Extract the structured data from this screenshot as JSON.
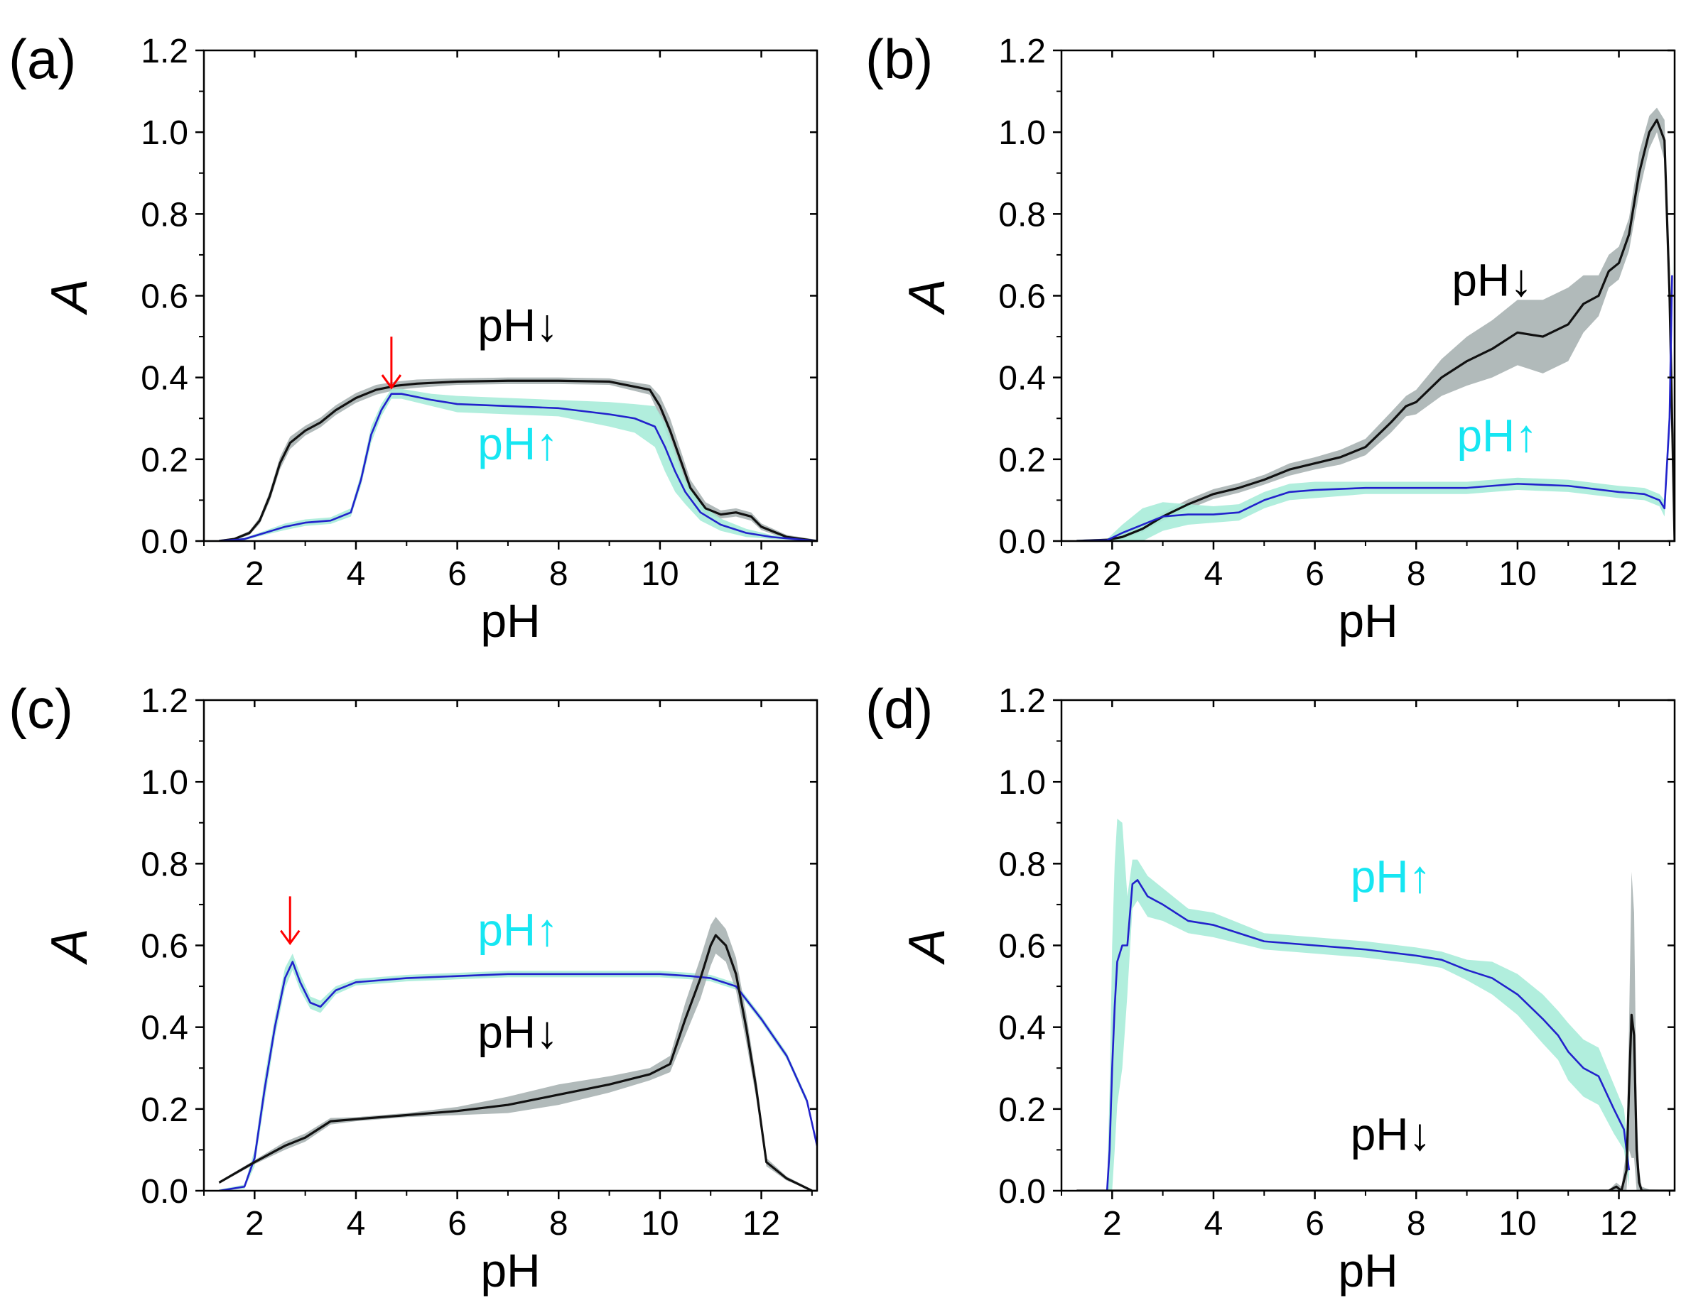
{
  "figure": {
    "description_labels": [
      "(a)",
      "(b)",
      "(c)",
      "(d)"
    ],
    "colors": {
      "ph_down_line": "#111111",
      "ph_down_band": "#a9b3b3",
      "ph_up_line": "#2222cc",
      "ph_up_band": "#a8ecd9",
      "ph_up_label": "#16e6f2",
      "ph_down_label": "#000000",
      "marker_arrow": "#ff0000"
    }
  },
  "chart_data": [
    {
      "id": "a",
      "panel_label": "(a)",
      "type": "line",
      "xlabel": "pH",
      "ylabel": "A",
      "xlim": [
        1,
        13.1
      ],
      "ylim": [
        0,
        1.2
      ],
      "xticks": [
        "2",
        "4",
        "6",
        "8",
        "10",
        "12"
      ],
      "xtick_values": [
        2,
        4,
        6,
        8,
        10,
        12
      ],
      "yticks": [
        "0.0",
        "0.2",
        "0.4",
        "0.6",
        "0.8",
        "1.0",
        "1.2"
      ],
      "ytick_values": [
        0,
        0.2,
        0.4,
        0.6,
        0.8,
        1.0,
        1.2
      ],
      "series": [
        {
          "name": "pH↓",
          "role": "down",
          "x": [
            1.3,
            1.6,
            1.9,
            2.1,
            2.3,
            2.5,
            2.7,
            3.0,
            3.3,
            3.6,
            4.0,
            4.4,
            4.8,
            5.2,
            6.0,
            7.0,
            8.0,
            9.0,
            9.8,
            10.0,
            10.2,
            10.4,
            10.6,
            10.9,
            11.2,
            11.5,
            11.8,
            12.0,
            12.5,
            13.1
          ],
          "y": [
            0.0,
            0.005,
            0.02,
            0.05,
            0.11,
            0.19,
            0.24,
            0.27,
            0.29,
            0.32,
            0.35,
            0.37,
            0.38,
            0.385,
            0.39,
            0.392,
            0.392,
            0.39,
            0.37,
            0.33,
            0.27,
            0.2,
            0.13,
            0.08,
            0.065,
            0.07,
            0.06,
            0.035,
            0.01,
            0.0
          ],
          "band": [
            0.003,
            0.003,
            0.005,
            0.008,
            0.012,
            0.015,
            0.015,
            0.012,
            0.012,
            0.012,
            0.012,
            0.012,
            0.01,
            0.01,
            0.008,
            0.008,
            0.008,
            0.008,
            0.012,
            0.025,
            0.03,
            0.025,
            0.02,
            0.015,
            0.01,
            0.01,
            0.01,
            0.008,
            0.005,
            0.003
          ]
        },
        {
          "name": "pH↑",
          "role": "up",
          "x": [
            1.3,
            1.8,
            2.2,
            2.6,
            3.0,
            3.5,
            3.9,
            4.1,
            4.3,
            4.5,
            4.7,
            4.9,
            5.5,
            6.0,
            7.0,
            8.0,
            9.0,
            9.5,
            9.9,
            10.1,
            10.3,
            10.5,
            10.8,
            11.2,
            11.7,
            12.2,
            13.1
          ],
          "y": [
            0.0,
            0.005,
            0.02,
            0.035,
            0.045,
            0.05,
            0.07,
            0.15,
            0.26,
            0.32,
            0.36,
            0.36,
            0.345,
            0.335,
            0.33,
            0.325,
            0.31,
            0.3,
            0.28,
            0.23,
            0.17,
            0.12,
            0.07,
            0.04,
            0.02,
            0.01,
            0.0
          ],
          "band": [
            0.003,
            0.003,
            0.005,
            0.008,
            0.008,
            0.008,
            0.01,
            0.015,
            0.02,
            0.015,
            0.012,
            0.012,
            0.015,
            0.02,
            0.02,
            0.02,
            0.03,
            0.035,
            0.05,
            0.06,
            0.05,
            0.03,
            0.02,
            0.015,
            0.01,
            0.005,
            0.003
          ]
        }
      ],
      "annotations": [
        {
          "text": "pH↓",
          "role": "down",
          "x": 7.2,
          "y": 0.49
        },
        {
          "text": "pH↑",
          "role": "up",
          "x": 7.2,
          "y": 0.2
        }
      ],
      "markers": [
        {
          "x": 4.7,
          "y_top": 0.5,
          "y_tip": 0.375
        }
      ]
    },
    {
      "id": "b",
      "panel_label": "(b)",
      "type": "line",
      "xlabel": "pH",
      "ylabel": "A",
      "xlim": [
        1,
        13.1
      ],
      "ylim": [
        0,
        1.2
      ],
      "xticks": [
        "2",
        "4",
        "6",
        "8",
        "10",
        "12"
      ],
      "xtick_values": [
        2,
        4,
        6,
        8,
        10,
        12
      ],
      "yticks": [
        "0.0",
        "0.2",
        "0.4",
        "0.6",
        "0.8",
        "1.0",
        "1.2"
      ],
      "ytick_values": [
        0,
        0.2,
        0.4,
        0.6,
        0.8,
        1.0,
        1.2
      ],
      "series": [
        {
          "name": "pH↓",
          "role": "down",
          "x": [
            1.3,
            1.9,
            2.2,
            2.6,
            3.0,
            3.5,
            4.0,
            4.5,
            5.0,
            5.5,
            6.0,
            6.5,
            7.0,
            7.5,
            7.8,
            8.0,
            8.5,
            9.0,
            9.5,
            10.0,
            10.5,
            11.0,
            11.3,
            11.6,
            11.8,
            12.0,
            12.2,
            12.4,
            12.6,
            12.75,
            12.9,
            13.0,
            13.1
          ],
          "y": [
            0.0,
            0.003,
            0.01,
            0.03,
            0.06,
            0.09,
            0.115,
            0.13,
            0.15,
            0.175,
            0.19,
            0.205,
            0.23,
            0.29,
            0.33,
            0.34,
            0.4,
            0.44,
            0.47,
            0.51,
            0.5,
            0.53,
            0.58,
            0.6,
            0.66,
            0.68,
            0.75,
            0.9,
            1.0,
            1.03,
            0.98,
            0.6,
            0.0
          ],
          "band": [
            0.003,
            0.003,
            0.005,
            0.008,
            0.01,
            0.012,
            0.012,
            0.012,
            0.012,
            0.015,
            0.015,
            0.018,
            0.02,
            0.025,
            0.025,
            0.03,
            0.045,
            0.06,
            0.07,
            0.08,
            0.09,
            0.09,
            0.07,
            0.05,
            0.04,
            0.04,
            0.04,
            0.05,
            0.04,
            0.03,
            0.05,
            0.08,
            0.01
          ]
        },
        {
          "name": "pH↑",
          "role": "up",
          "x": [
            1.3,
            1.9,
            2.2,
            2.6,
            3.0,
            3.5,
            4.0,
            4.5,
            5.0,
            5.5,
            6.0,
            7.0,
            8.0,
            9.0,
            10.0,
            11.0,
            12.0,
            12.5,
            12.8,
            12.9,
            13.0,
            13.05
          ],
          "y": [
            0.0,
            0.002,
            0.02,
            0.04,
            0.06,
            0.065,
            0.065,
            0.07,
            0.1,
            0.12,
            0.125,
            0.13,
            0.13,
            0.13,
            0.14,
            0.135,
            0.12,
            0.115,
            0.1,
            0.08,
            0.3,
            0.65
          ],
          "band": [
            0.003,
            0.003,
            0.02,
            0.04,
            0.035,
            0.025,
            0.02,
            0.02,
            0.02,
            0.02,
            0.02,
            0.015,
            0.015,
            0.015,
            0.015,
            0.015,
            0.015,
            0.015,
            0.015,
            0.02,
            0.05,
            0.05
          ]
        }
      ],
      "annotations": [
        {
          "text": "pH↓",
          "role": "down",
          "x": 9.5,
          "y": 0.6
        },
        {
          "text": "pH↑",
          "role": "up",
          "x": 9.6,
          "y": 0.22
        }
      ],
      "markers": []
    },
    {
      "id": "c",
      "panel_label": "(c)",
      "type": "line",
      "xlabel": "pH",
      "ylabel": "A",
      "xlim": [
        1,
        13.1
      ],
      "ylim": [
        0,
        1.2
      ],
      "xticks": [
        "2",
        "4",
        "6",
        "8",
        "10",
        "12"
      ],
      "xtick_values": [
        2,
        4,
        6,
        8,
        10,
        12
      ],
      "yticks": [
        "0.0",
        "0.2",
        "0.4",
        "0.6",
        "0.8",
        "1.0",
        "1.2"
      ],
      "ytick_values": [
        0,
        0.2,
        0.4,
        0.6,
        0.8,
        1.0,
        1.2
      ],
      "series": [
        {
          "name": "pH↑",
          "role": "up",
          "x": [
            1.3,
            1.8,
            2.0,
            2.2,
            2.4,
            2.6,
            2.75,
            2.9,
            3.1,
            3.3,
            3.6,
            4.0,
            5.0,
            6.0,
            7.0,
            8.0,
            9.0,
            10.0,
            10.6,
            11.0,
            11.5,
            12.0,
            12.5,
            12.9,
            13.1
          ],
          "y": [
            0.0,
            0.01,
            0.08,
            0.25,
            0.4,
            0.52,
            0.56,
            0.51,
            0.46,
            0.45,
            0.49,
            0.51,
            0.52,
            0.525,
            0.53,
            0.53,
            0.53,
            0.53,
            0.525,
            0.52,
            0.5,
            0.42,
            0.33,
            0.22,
            0.11
          ],
          "band": [
            0.003,
            0.005,
            0.02,
            0.03,
            0.025,
            0.025,
            0.02,
            0.02,
            0.015,
            0.015,
            0.01,
            0.008,
            0.008,
            0.008,
            0.008,
            0.008,
            0.008,
            0.008,
            0.008,
            0.008,
            0.008,
            0.008,
            0.008,
            0.008,
            0.008
          ]
        },
        {
          "name": "pH↓",
          "role": "down",
          "x": [
            1.3,
            2.0,
            2.6,
            3.0,
            3.5,
            4.0,
            5.0,
            6.0,
            7.0,
            8.0,
            9.0,
            9.8,
            10.2,
            10.5,
            10.8,
            11.0,
            11.1,
            11.3,
            11.5,
            11.7,
            11.9,
            12.1,
            12.5,
            13.0
          ],
          "y": [
            0.02,
            0.07,
            0.11,
            0.13,
            0.17,
            0.175,
            0.185,
            0.195,
            0.21,
            0.235,
            0.26,
            0.285,
            0.31,
            0.42,
            0.52,
            0.6,
            0.625,
            0.6,
            0.53,
            0.4,
            0.25,
            0.07,
            0.03,
            0.0
          ],
          "band": [
            0.003,
            0.005,
            0.01,
            0.01,
            0.008,
            0.005,
            0.005,
            0.01,
            0.02,
            0.025,
            0.02,
            0.015,
            0.02,
            0.04,
            0.05,
            0.05,
            0.045,
            0.04,
            0.04,
            0.035,
            0.025,
            0.01,
            0.005,
            0.003
          ]
        }
      ],
      "annotations": [
        {
          "text": "pH↑",
          "role": "up",
          "x": 7.2,
          "y": 0.6
        },
        {
          "text": "pH↓",
          "role": "down",
          "x": 7.2,
          "y": 0.35
        }
      ],
      "markers": [
        {
          "x": 2.7,
          "y_top": 0.72,
          "y_tip": 0.605
        }
      ]
    },
    {
      "id": "d",
      "panel_label": "(d)",
      "type": "line",
      "xlabel": "pH",
      "ylabel": "A",
      "xlim": [
        1,
        13.1
      ],
      "ylim": [
        0,
        1.2
      ],
      "xticks": [
        "2",
        "4",
        "6",
        "8",
        "10",
        "12"
      ],
      "xtick_values": [
        2,
        4,
        6,
        8,
        10,
        12
      ],
      "yticks": [
        "0.0",
        "0.2",
        "0.4",
        "0.6",
        "0.8",
        "1.0",
        "1.2"
      ],
      "ytick_values": [
        0,
        0.2,
        0.4,
        0.6,
        0.8,
        1.0,
        1.2
      ],
      "series": [
        {
          "name": "pH↑",
          "role": "up",
          "x": [
            1.9,
            1.95,
            2.0,
            2.05,
            2.1,
            2.2,
            2.3,
            2.4,
            2.5,
            2.7,
            3.0,
            3.5,
            4.0,
            5.0,
            6.0,
            7.0,
            8.0,
            8.5,
            9.0,
            9.5,
            10.0,
            10.5,
            10.8,
            11.0,
            11.3,
            11.6,
            11.9,
            12.1,
            12.2
          ],
          "y": [
            0.0,
            0.1,
            0.3,
            0.45,
            0.56,
            0.6,
            0.6,
            0.75,
            0.76,
            0.72,
            0.7,
            0.66,
            0.65,
            0.61,
            0.6,
            0.59,
            0.575,
            0.565,
            0.54,
            0.52,
            0.48,
            0.42,
            0.38,
            0.34,
            0.3,
            0.28,
            0.2,
            0.15,
            0.05
          ],
          "band": [
            0.01,
            0.15,
            0.3,
            0.35,
            0.35,
            0.3,
            0.12,
            0.06,
            0.05,
            0.05,
            0.04,
            0.03,
            0.03,
            0.02,
            0.02,
            0.02,
            0.02,
            0.02,
            0.025,
            0.04,
            0.05,
            0.06,
            0.06,
            0.07,
            0.07,
            0.07,
            0.06,
            0.05,
            0.04
          ]
        },
        {
          "name": "pH↓",
          "role": "down",
          "x": [
            1.3,
            11.8,
            11.95,
            12.05,
            12.15,
            12.2,
            12.25,
            12.3,
            12.35,
            12.4,
            12.45,
            12.6,
            13.1
          ],
          "y": [
            0.0,
            0.0,
            0.01,
            0.0,
            0.05,
            0.25,
            0.43,
            0.38,
            0.1,
            0.02,
            0.0,
            0.0,
            0.0
          ],
          "band": [
            0.002,
            0.002,
            0.01,
            0.01,
            0.05,
            0.15,
            0.35,
            0.3,
            0.1,
            0.03,
            0.01,
            0.003,
            0.002
          ]
        }
      ],
      "annotations": [
        {
          "text": "pH↑",
          "role": "up",
          "x": 7.5,
          "y": 0.73
        },
        {
          "text": "pH↓",
          "role": "down",
          "x": 7.5,
          "y": 0.1
        }
      ],
      "markers": []
    }
  ]
}
